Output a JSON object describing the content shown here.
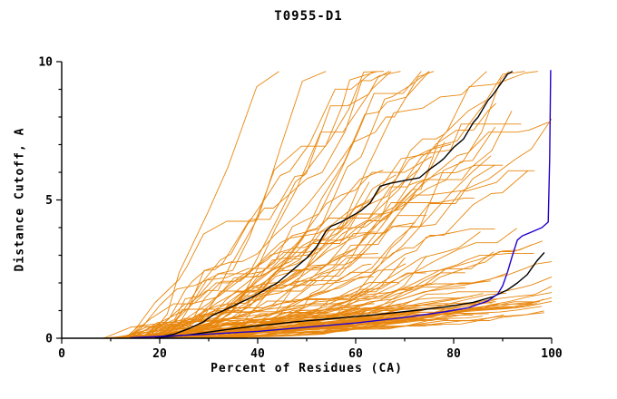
{
  "chart_data": {
    "type": "line",
    "title": "T0955-D1",
    "xlabel": "Percent of Residues (CA)",
    "ylabel": "Distance Cutoff, A",
    "xlim": [
      0,
      100
    ],
    "ylim": [
      0,
      10
    ],
    "x_major_ticks": [
      0,
      20,
      40,
      60,
      80,
      100
    ],
    "x_minor_step": 10,
    "y_major_ticks": [
      0,
      5,
      10
    ],
    "y_minor_step": 1,
    "grid": false,
    "legend": "none",
    "colors": {
      "ensemble": "#e8870e",
      "model_black": "#000000",
      "model_blue": "#2200cc",
      "axis": "#000000",
      "background": "#ffffff"
    },
    "series": [
      {
        "name": "black-upper-model",
        "color": "#000000",
        "width": 1.4,
        "points": [
          [
            19,
            0.02
          ],
          [
            23,
            0.15
          ],
          [
            26,
            0.35
          ],
          [
            29,
            0.6
          ],
          [
            31,
            0.85
          ],
          [
            33,
            1.0
          ],
          [
            36,
            1.25
          ],
          [
            39,
            1.5
          ],
          [
            42,
            1.8
          ],
          [
            44,
            2.0
          ],
          [
            46,
            2.3
          ],
          [
            48,
            2.6
          ],
          [
            50,
            2.9
          ],
          [
            52,
            3.3
          ],
          [
            53,
            3.6
          ],
          [
            54,
            3.9
          ],
          [
            55,
            4.05
          ],
          [
            57,
            4.2
          ],
          [
            59,
            4.4
          ],
          [
            61,
            4.6
          ],
          [
            63,
            4.9
          ],
          [
            64,
            5.2
          ],
          [
            65,
            5.5
          ],
          [
            67,
            5.6
          ],
          [
            70,
            5.7
          ],
          [
            73,
            5.8
          ],
          [
            75,
            6.1
          ],
          [
            77,
            6.35
          ],
          [
            78,
            6.5
          ],
          [
            80,
            6.9
          ],
          [
            82,
            7.2
          ],
          [
            83,
            7.5
          ],
          [
            84,
            7.8
          ],
          [
            85,
            8.0
          ],
          [
            86,
            8.3
          ],
          [
            87,
            8.6
          ],
          [
            88,
            8.8
          ],
          [
            89,
            9.05
          ],
          [
            90,
            9.3
          ],
          [
            91,
            9.55
          ],
          [
            92,
            9.65
          ]
        ]
      },
      {
        "name": "black-lower-model",
        "color": "#000000",
        "width": 1.4,
        "points": [
          [
            19,
            0.02
          ],
          [
            26,
            0.12
          ],
          [
            33,
            0.3
          ],
          [
            40,
            0.45
          ],
          [
            48,
            0.6
          ],
          [
            56,
            0.72
          ],
          [
            64,
            0.85
          ],
          [
            72,
            1.0
          ],
          [
            79,
            1.15
          ],
          [
            84,
            1.3
          ],
          [
            88,
            1.5
          ],
          [
            91,
            1.75
          ],
          [
            93,
            2.0
          ],
          [
            95,
            2.3
          ],
          [
            96,
            2.55
          ],
          [
            97,
            2.8
          ],
          [
            98,
            3.0
          ],
          [
            98.5,
            3.1
          ]
        ]
      },
      {
        "name": "blue-model",
        "color": "#2200cc",
        "width": 1.4,
        "points": [
          [
            14,
            0.02
          ],
          [
            22,
            0.08
          ],
          [
            30,
            0.15
          ],
          [
            40,
            0.25
          ],
          [
            50,
            0.4
          ],
          [
            60,
            0.55
          ],
          [
            70,
            0.75
          ],
          [
            78,
            0.95
          ],
          [
            83,
            1.1
          ],
          [
            87,
            1.35
          ],
          [
            89,
            1.6
          ],
          [
            90,
            1.9
          ],
          [
            91,
            2.4
          ],
          [
            92,
            3.0
          ],
          [
            93,
            3.55
          ],
          [
            94,
            3.7
          ],
          [
            96,
            3.85
          ],
          [
            98,
            4.0
          ],
          [
            99.3,
            4.2
          ],
          [
            99.6,
            6.5
          ],
          [
            99.8,
            9.7
          ]
        ]
      }
    ],
    "ensemble": {
      "name": "orange-prediction-ensemble",
      "color": "#e8870e",
      "count": 115,
      "seed": 7,
      "width": 0.9,
      "x_start_range": [
        8,
        27
      ],
      "x_end_range": [
        58,
        100
      ],
      "slope_min": 0.015,
      "slope_scale": 0.3,
      "slope_pow": 4,
      "y_cap": 9.65
    }
  }
}
